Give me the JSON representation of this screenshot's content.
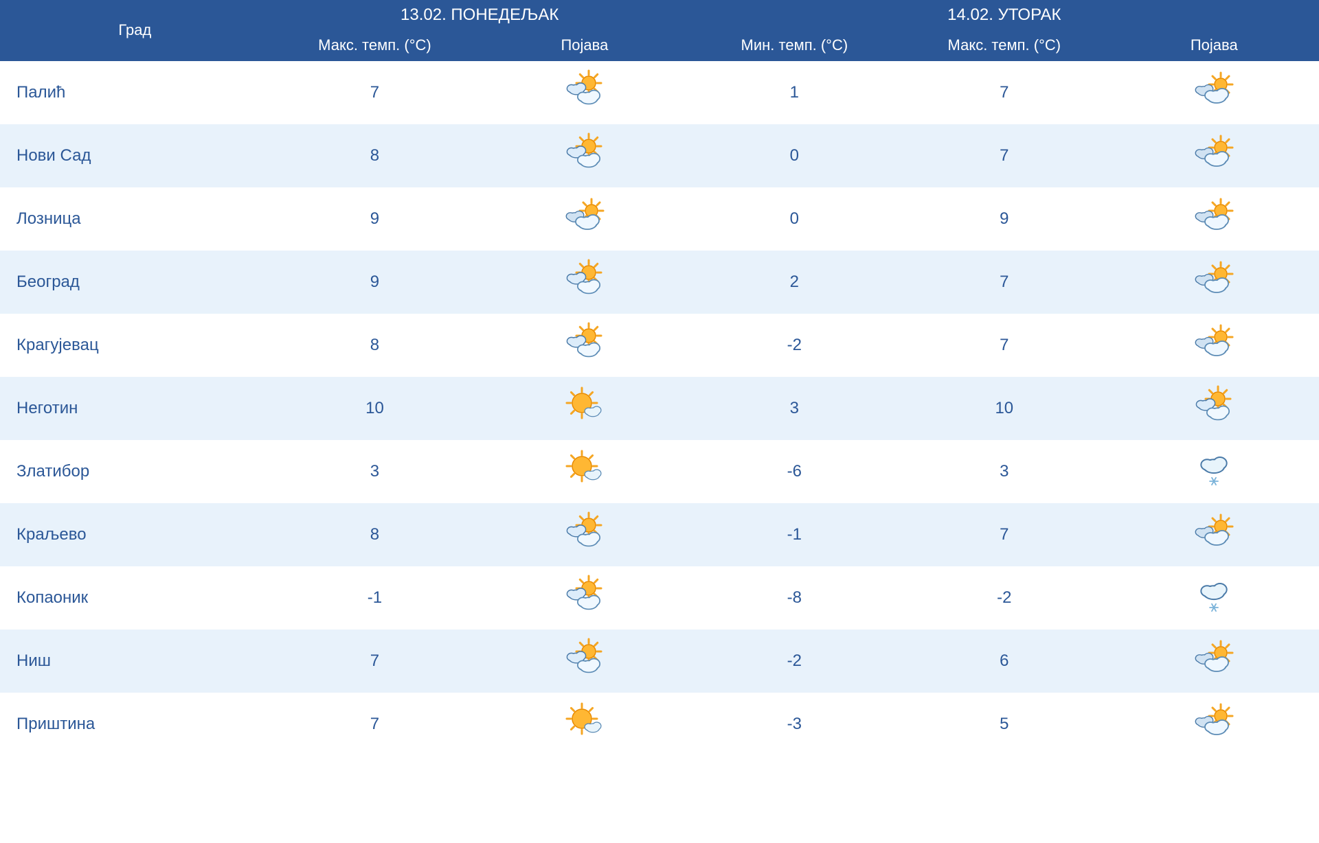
{
  "table": {
    "header": {
      "city_label": "Град",
      "day1": {
        "date": "13.02. ПОНЕДЕЉАК",
        "max_temp": "Макс. темп. (°C)",
        "condition": "Појава"
      },
      "day2": {
        "date": "14.02. УТОРАК",
        "min_temp": "Мин. темп. (°C)",
        "max_temp": "Макс. темп. (°C)",
        "condition": "Појава"
      }
    },
    "rows": [
      {
        "city": "Палић",
        "d1_max": "7",
        "d1_icon": "partly-cloudy",
        "d2_min": "1",
        "d2_max": "7",
        "d2_icon": "mostly-cloudy"
      },
      {
        "city": "Нови Сад",
        "d1_max": "8",
        "d1_icon": "partly-cloudy",
        "d2_min": "0",
        "d2_max": "7",
        "d2_icon": "mostly-cloudy"
      },
      {
        "city": "Лозница",
        "d1_max": "9",
        "d1_icon": "mostly-cloudy",
        "d2_min": "0",
        "d2_max": "9",
        "d2_icon": "mostly-cloudy"
      },
      {
        "city": "Београд",
        "d1_max": "9",
        "d1_icon": "partly-cloudy",
        "d2_min": "2",
        "d2_max": "7",
        "d2_icon": "mostly-cloudy"
      },
      {
        "city": "Крагујевац",
        "d1_max": "8",
        "d1_icon": "partly-cloudy",
        "d2_min": "-2",
        "d2_max": "7",
        "d2_icon": "mostly-cloudy"
      },
      {
        "city": "Неготин",
        "d1_max": "10",
        "d1_icon": "mostly-sunny",
        "d2_min": "3",
        "d2_max": "10",
        "d2_icon": "partly-cloudy"
      },
      {
        "city": "Златибор",
        "d1_max": "3",
        "d1_icon": "mostly-sunny",
        "d2_min": "-6",
        "d2_max": "3",
        "d2_icon": "snow"
      },
      {
        "city": "Краљево",
        "d1_max": "8",
        "d1_icon": "partly-cloudy",
        "d2_min": "-1",
        "d2_max": "7",
        "d2_icon": "mostly-cloudy"
      },
      {
        "city": "Копаоник",
        "d1_max": "-1",
        "d1_icon": "partly-cloudy",
        "d2_min": "-8",
        "d2_max": "-2",
        "d2_icon": "snow"
      },
      {
        "city": "Ниш",
        "d1_max": "7",
        "d1_icon": "partly-cloudy",
        "d2_min": "-2",
        "d2_max": "6",
        "d2_icon": "mostly-cloudy"
      },
      {
        "city": "Приштина",
        "d1_max": "7",
        "d1_icon": "mostly-sunny",
        "d2_min": "-3",
        "d2_max": "5",
        "d2_icon": "mostly-cloudy"
      }
    ]
  },
  "colors": {
    "header_bg": "#2b5797",
    "header_fg": "#ffffff",
    "row_odd_bg": "#ffffff",
    "row_even_bg": "#e8f2fb",
    "text": "#2b5797"
  },
  "icons": {
    "partly-cloudy": "partly-cloudy",
    "mostly-cloudy": "mostly-cloudy",
    "mostly-sunny": "mostly-sunny",
    "snow": "snow"
  }
}
